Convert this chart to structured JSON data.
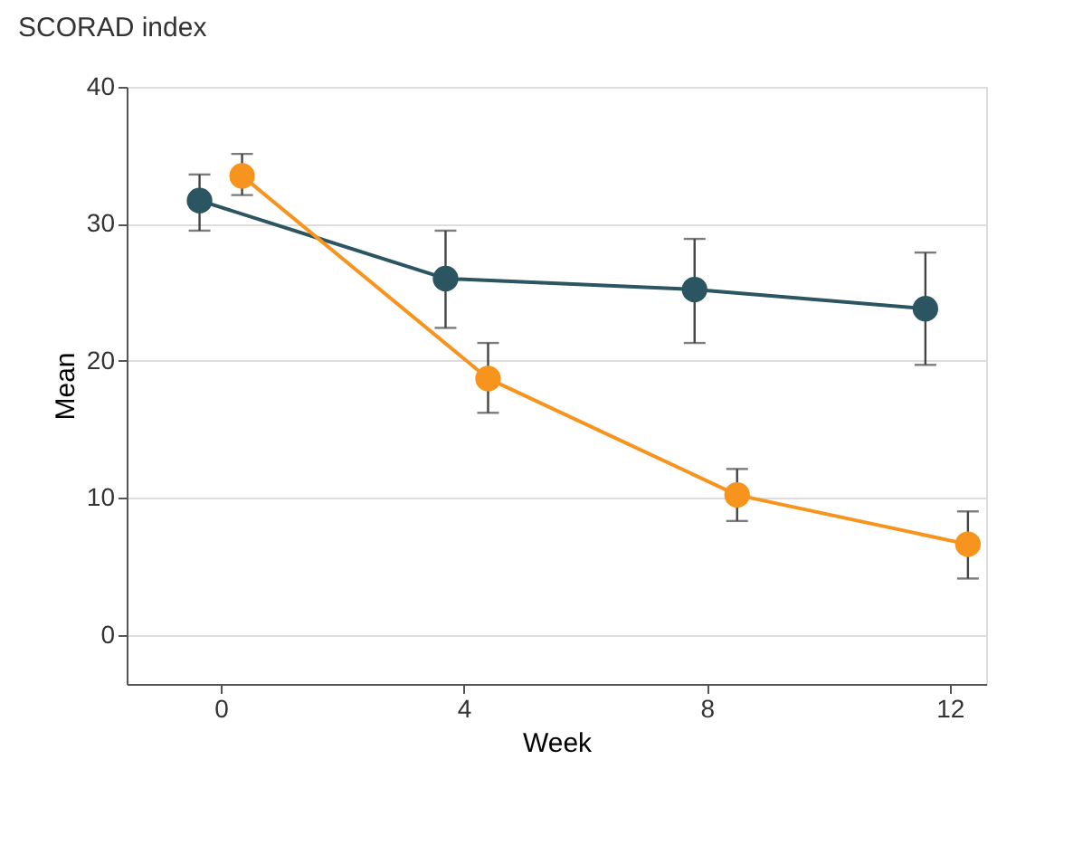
{
  "chart_data": {
    "type": "line",
    "title": "SCORAD index",
    "xlabel": "Week",
    "ylabel": "Mean",
    "xlim": [
      -1.55,
      12.6
    ],
    "xticks": [
      0,
      4,
      8,
      12
    ],
    "ylim": [
      -3.6,
      40
    ],
    "yticks": [
      0,
      10,
      20,
      30,
      40
    ],
    "grid": "y",
    "marker": "circle",
    "line_style": "solid",
    "series": [
      {
        "color": "#2b5560",
        "x": [
          -0.35,
          3.7,
          7.8,
          11.6
        ],
        "values": [
          31.7,
          26.0,
          25.2,
          23.8
        ],
        "errors": [
          [
            29.5,
            33.6
          ],
          [
            22.4,
            29.5
          ],
          [
            21.3,
            28.9
          ],
          [
            19.7,
            27.9
          ]
        ]
      },
      {
        "color": "#f7941d",
        "x": [
          0.35,
          4.4,
          8.5,
          12.3
        ],
        "values": [
          33.5,
          18.7,
          10.2,
          6.6
        ],
        "errors": [
          [
            32.1,
            35.1
          ],
          [
            16.2,
            21.3
          ],
          [
            8.3,
            12.1
          ],
          [
            4.1,
            9.0
          ]
        ]
      }
    ]
  }
}
